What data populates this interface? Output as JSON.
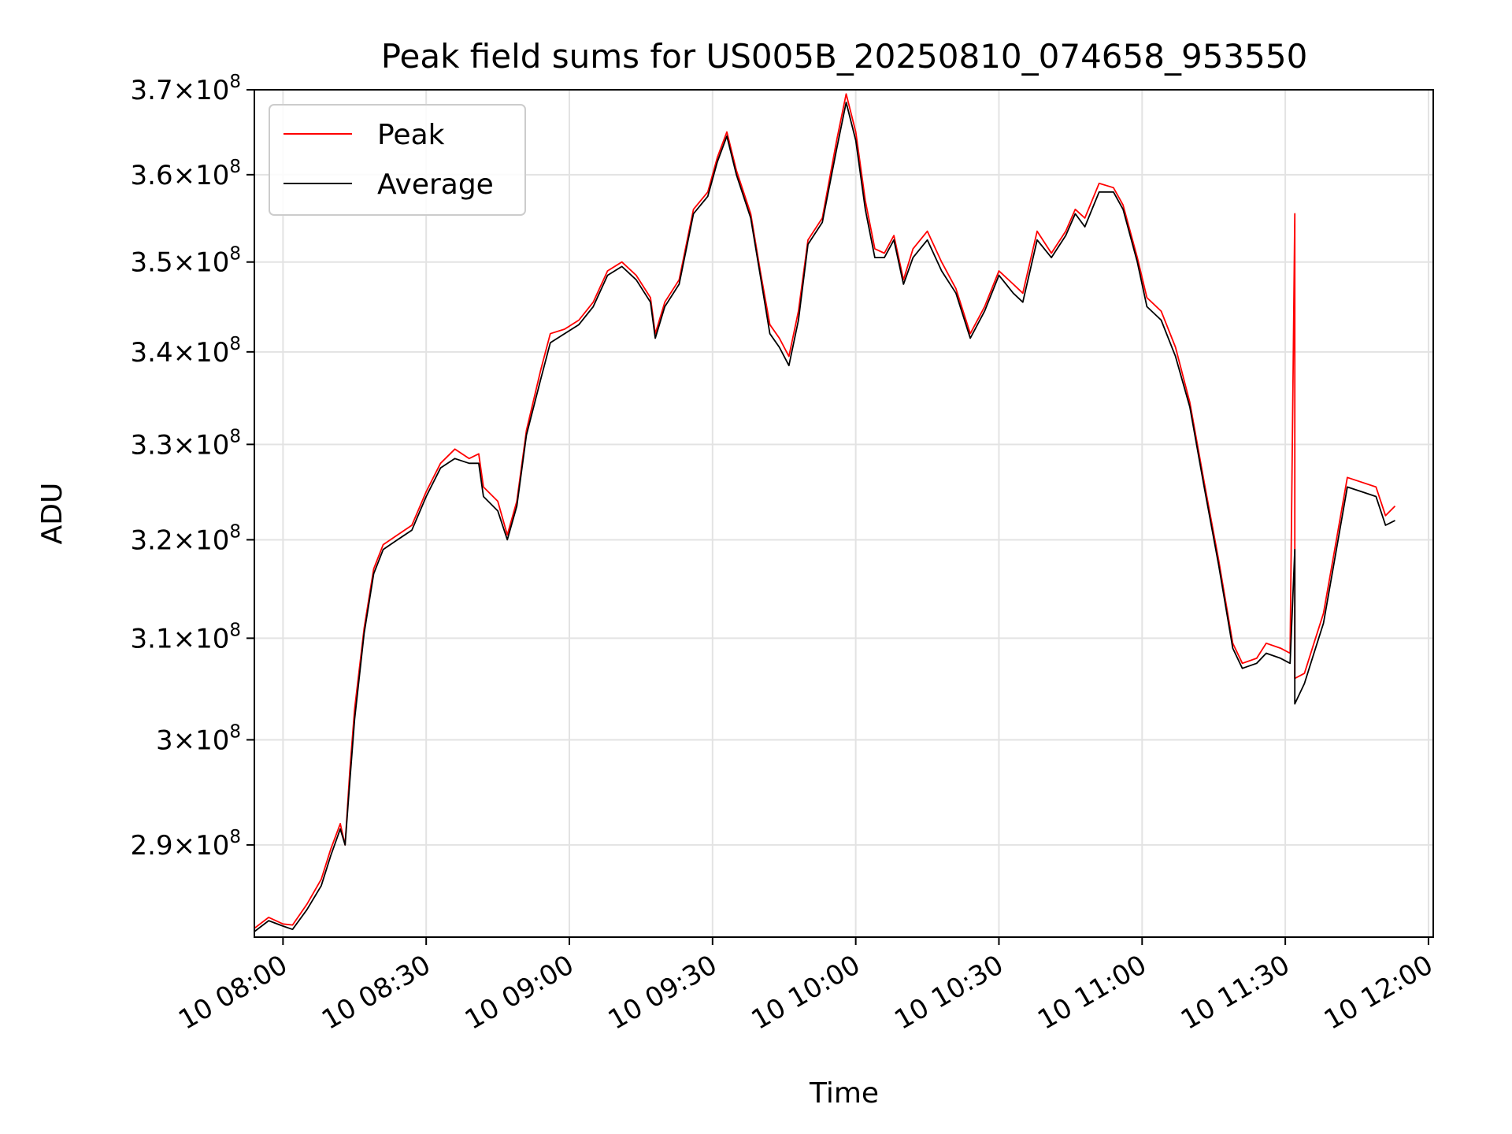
{
  "chart_data": {
    "type": "line",
    "title": "Peak field sums for US005B_20250810_074658_953550",
    "xlabel": "Time",
    "ylabel": "ADU",
    "y_scale": "log",
    "ylim": [
      281500000,
      370000000
    ],
    "xlim": [
      "10 07:54",
      "10 12:01"
    ],
    "grid": true,
    "legend_position": "upper-left",
    "x_ticks": [
      {
        "time": "10 08:00",
        "label": "10 08:00"
      },
      {
        "time": "10 08:30",
        "label": "10 08:30"
      },
      {
        "time": "10 09:00",
        "label": "10 09:00"
      },
      {
        "time": "10 09:30",
        "label": "10 09:30"
      },
      {
        "time": "10 10:00",
        "label": "10 10:00"
      },
      {
        "time": "10 10:30",
        "label": "10 10:30"
      },
      {
        "time": "10 11:00",
        "label": "10 11:00"
      },
      {
        "time": "10 11:30",
        "label": "10 11:30"
      },
      {
        "time": "10 12:00",
        "label": "10 12:00"
      }
    ],
    "y_ticks": [
      {
        "value": 290000000,
        "mant": "2.9",
        "exp": "8"
      },
      {
        "value": 300000000,
        "mant": "3",
        "exp": "8"
      },
      {
        "value": 310000000,
        "mant": "3.1",
        "exp": "8"
      },
      {
        "value": 320000000,
        "mant": "3.2",
        "exp": "8"
      },
      {
        "value": 330000000,
        "mant": "3.3",
        "exp": "8"
      },
      {
        "value": 340000000,
        "mant": "3.4",
        "exp": "8"
      },
      {
        "value": 350000000,
        "mant": "3.5",
        "exp": "8"
      },
      {
        "value": 360000000,
        "mant": "3.6",
        "exp": "8"
      },
      {
        "value": 370000000,
        "mant": "3.7",
        "exp": "8"
      }
    ],
    "series": [
      {
        "name": "Peak",
        "color": "#ff0000",
        "points": [
          [
            "10 07:54",
            282.3
          ],
          [
            "10 07:57",
            283.3
          ],
          [
            "10 08:00",
            282.7
          ],
          [
            "10 08:02",
            282.6
          ],
          [
            "10 08:05",
            284.5
          ],
          [
            "10 08:08",
            286.8
          ],
          [
            "10 08:10",
            289.6
          ],
          [
            "10 08:12",
            292.0
          ],
          [
            "10 08:13",
            290.0
          ],
          [
            "10 08:14",
            297.0
          ],
          [
            "10 08:15",
            303.0
          ],
          [
            "10 08:17",
            311.0
          ],
          [
            "10 08:19",
            317.0
          ],
          [
            "10 08:21",
            319.5
          ],
          [
            "10 08:24",
            320.5
          ],
          [
            "10 08:27",
            321.5
          ],
          [
            "10 08:30",
            325.0
          ],
          [
            "10 08:33",
            328.0
          ],
          [
            "10 08:36",
            329.5
          ],
          [
            "10 08:39",
            328.5
          ],
          [
            "10 08:41",
            329.0
          ],
          [
            "10 08:42",
            325.5
          ],
          [
            "10 08:45",
            324.0
          ],
          [
            "10 08:47",
            320.5
          ],
          [
            "10 08:49",
            324.0
          ],
          [
            "10 08:51",
            331.5
          ],
          [
            "10 08:54",
            338.0
          ],
          [
            "10 08:56",
            342.0
          ],
          [
            "10 08:59",
            342.5
          ],
          [
            "10 09:02",
            343.5
          ],
          [
            "10 09:05",
            345.5
          ],
          [
            "10 09:08",
            349.0
          ],
          [
            "10 09:11",
            350.0
          ],
          [
            "10 09:14",
            348.5
          ],
          [
            "10 09:17",
            346.0
          ],
          [
            "10 09:18",
            342.0
          ],
          [
            "10 09:20",
            345.5
          ],
          [
            "10 09:23",
            348.0
          ],
          [
            "10 09:26",
            356.0
          ],
          [
            "10 09:29",
            358.0
          ],
          [
            "10 09:31",
            362.0
          ],
          [
            "10 09:33",
            365.0
          ],
          [
            "10 09:35",
            360.5
          ],
          [
            "10 09:38",
            355.5
          ],
          [
            "10 09:40",
            349.0
          ],
          [
            "10 09:42",
            343.0
          ],
          [
            "10 09:44",
            341.5
          ],
          [
            "10 09:46",
            339.5
          ],
          [
            "10 09:48",
            344.5
          ],
          [
            "10 09:50",
            352.5
          ],
          [
            "10 09:53",
            355.0
          ],
          [
            "10 09:56",
            364.0
          ],
          [
            "10 09:58",
            369.5
          ],
          [
            "10 10:00",
            365.0
          ],
          [
            "10 10:02",
            357.0
          ],
          [
            "10 10:04",
            351.5
          ],
          [
            "10 10:06",
            351.0
          ],
          [
            "10 10:08",
            353.0
          ],
          [
            "10 10:10",
            348.0
          ],
          [
            "10 10:12",
            351.5
          ],
          [
            "10 10:15",
            353.5
          ],
          [
            "10 10:18",
            350.0
          ],
          [
            "10 10:21",
            347.0
          ],
          [
            "10 10:24",
            342.0
          ],
          [
            "10 10:27",
            345.0
          ],
          [
            "10 10:30",
            349.0
          ],
          [
            "10 10:33",
            347.5
          ],
          [
            "10 10:35",
            346.5
          ],
          [
            "10 10:38",
            353.5
          ],
          [
            "10 10:41",
            351.0
          ],
          [
            "10 10:44",
            353.5
          ],
          [
            "10 10:46",
            356.0
          ],
          [
            "10 10:48",
            355.0
          ],
          [
            "10 10:51",
            359.0
          ],
          [
            "10 10:54",
            358.5
          ],
          [
            "10 10:56",
            356.5
          ],
          [
            "10 10:59",
            350.5
          ],
          [
            "10 11:01",
            346.0
          ],
          [
            "10 11:04",
            344.5
          ],
          [
            "10 11:07",
            340.5
          ],
          [
            "10 11:10",
            334.5
          ],
          [
            "10 11:13",
            326.0
          ],
          [
            "10 11:16",
            318.0
          ],
          [
            "10 11:19",
            309.5
          ],
          [
            "10 11:21",
            307.5
          ],
          [
            "10 11:24",
            308.0
          ],
          [
            "10 11:26",
            309.5
          ],
          [
            "10 11:29",
            309.0
          ],
          [
            "10 11:31",
            308.5
          ],
          [
            "10 11:32",
            355.5
          ],
          [
            "10 11:32",
            306.0
          ],
          [
            "10 11:34",
            306.5
          ],
          [
            "10 11:36",
            309.5
          ],
          [
            "10 11:38",
            312.5
          ],
          [
            "10 11:40",
            318.0
          ],
          [
            "10 11:43",
            326.5
          ],
          [
            "10 11:46",
            326.0
          ],
          [
            "10 11:49",
            325.5
          ],
          [
            "10 11:51",
            322.5
          ],
          [
            "10 11:53",
            323.5
          ]
        ]
      },
      {
        "name": "Average",
        "color": "#000000",
        "points": [
          [
            "10 07:54",
            282.0
          ],
          [
            "10 07:57",
            283.0
          ],
          [
            "10 08:00",
            282.5
          ],
          [
            "10 08:02",
            282.2
          ],
          [
            "10 08:05",
            284.0
          ],
          [
            "10 08:08",
            286.2
          ],
          [
            "10 08:10",
            289.0
          ],
          [
            "10 08:12",
            291.5
          ],
          [
            "10 08:13",
            290.0
          ],
          [
            "10 08:14",
            296.0
          ],
          [
            "10 08:15",
            302.0
          ],
          [
            "10 08:17",
            310.5
          ],
          [
            "10 08:19",
            316.5
          ],
          [
            "10 08:21",
            319.0
          ],
          [
            "10 08:24",
            320.0
          ],
          [
            "10 08:27",
            321.0
          ],
          [
            "10 08:30",
            324.5
          ],
          [
            "10 08:33",
            327.5
          ],
          [
            "10 08:36",
            328.5
          ],
          [
            "10 08:39",
            328.0
          ],
          [
            "10 08:41",
            328.0
          ],
          [
            "10 08:42",
            324.5
          ],
          [
            "10 08:45",
            323.0
          ],
          [
            "10 08:47",
            320.0
          ],
          [
            "10 08:49",
            323.5
          ],
          [
            "10 08:51",
            331.0
          ],
          [
            "10 08:54",
            337.0
          ],
          [
            "10 08:56",
            341.0
          ],
          [
            "10 08:59",
            342.0
          ],
          [
            "10 09:02",
            343.0
          ],
          [
            "10 09:05",
            345.0
          ],
          [
            "10 09:08",
            348.5
          ],
          [
            "10 09:11",
            349.5
          ],
          [
            "10 09:14",
            348.0
          ],
          [
            "10 09:17",
            345.5
          ],
          [
            "10 09:18",
            341.5
          ],
          [
            "10 09:20",
            345.0
          ],
          [
            "10 09:23",
            347.5
          ],
          [
            "10 09:26",
            355.5
          ],
          [
            "10 09:29",
            357.5
          ],
          [
            "10 09:31",
            361.5
          ],
          [
            "10 09:33",
            364.5
          ],
          [
            "10 09:35",
            360.0
          ],
          [
            "10 09:38",
            355.0
          ],
          [
            "10 09:40",
            348.5
          ],
          [
            "10 09:42",
            342.0
          ],
          [
            "10 09:44",
            340.5
          ],
          [
            "10 09:46",
            338.5
          ],
          [
            "10 09:48",
            343.5
          ],
          [
            "10 09:50",
            352.0
          ],
          [
            "10 09:53",
            354.5
          ],
          [
            "10 09:56",
            363.0
          ],
          [
            "10 09:58",
            368.5
          ],
          [
            "10 10:00",
            364.0
          ],
          [
            "10 10:02",
            356.0
          ],
          [
            "10 10:04",
            350.5
          ],
          [
            "10 10:06",
            350.5
          ],
          [
            "10 10:08",
            352.5
          ],
          [
            "10 10:10",
            347.5
          ],
          [
            "10 10:12",
            350.5
          ],
          [
            "10 10:15",
            352.5
          ],
          [
            "10 10:18",
            349.0
          ],
          [
            "10 10:21",
            346.5
          ],
          [
            "10 10:24",
            341.5
          ],
          [
            "10 10:27",
            344.5
          ],
          [
            "10 10:30",
            348.5
          ],
          [
            "10 10:33",
            346.5
          ],
          [
            "10 10:35",
            345.5
          ],
          [
            "10 10:38",
            352.5
          ],
          [
            "10 10:41",
            350.5
          ],
          [
            "10 10:44",
            353.0
          ],
          [
            "10 10:46",
            355.5
          ],
          [
            "10 10:48",
            354.0
          ],
          [
            "10 10:51",
            358.0
          ],
          [
            "10 10:54",
            358.0
          ],
          [
            "10 10:56",
            356.0
          ],
          [
            "10 10:59",
            350.0
          ],
          [
            "10 11:01",
            345.0
          ],
          [
            "10 11:04",
            343.5
          ],
          [
            "10 11:07",
            339.5
          ],
          [
            "10 11:10",
            334.0
          ],
          [
            "10 11:13",
            325.5
          ],
          [
            "10 11:16",
            317.5
          ],
          [
            "10 11:19",
            309.0
          ],
          [
            "10 11:21",
            307.0
          ],
          [
            "10 11:24",
            307.5
          ],
          [
            "10 11:26",
            308.5
          ],
          [
            "10 11:29",
            308.0
          ],
          [
            "10 11:31",
            307.5
          ],
          [
            "10 11:32",
            319.0
          ],
          [
            "10 11:32",
            303.5
          ],
          [
            "10 11:34",
            305.5
          ],
          [
            "10 11:36",
            308.5
          ],
          [
            "10 11:38",
            311.5
          ],
          [
            "10 11:40",
            317.0
          ],
          [
            "10 11:43",
            325.5
          ],
          [
            "10 11:46",
            325.0
          ],
          [
            "10 11:49",
            324.5
          ],
          [
            "10 11:51",
            321.5
          ],
          [
            "10 11:53",
            322.0
          ]
        ]
      }
    ]
  }
}
